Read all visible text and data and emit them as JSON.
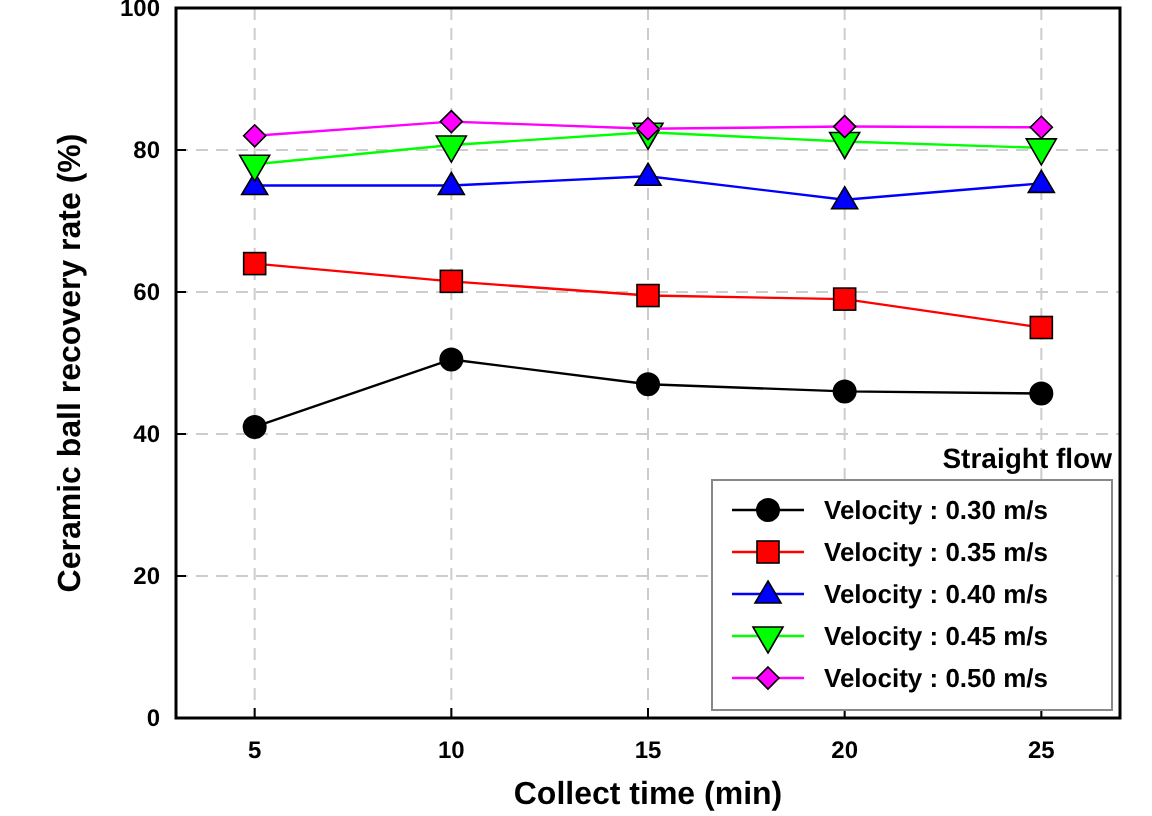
{
  "chart_data": {
    "type": "line",
    "xlabel": "Collect time (min)",
    "ylabel": "Ceramic ball recovery rate (%)",
    "legend_title": "Straight flow",
    "x": [
      5,
      10,
      15,
      20,
      25
    ],
    "xlim": [
      3,
      27
    ],
    "xticks": [
      5,
      10,
      15,
      20,
      25
    ],
    "ylim": [
      0,
      100
    ],
    "yticks": [
      0,
      20,
      40,
      60,
      80,
      100
    ],
    "grid": true,
    "legend": "bottom right",
    "series": [
      {
        "name": "Velocity : 0.30 m/s",
        "color": "#000000",
        "marker": "circle",
        "values": [
          41,
          50.5,
          47,
          46,
          45.7
        ]
      },
      {
        "name": "Velocity : 0.35 m/s",
        "color": "#ff0000",
        "marker": "square",
        "values": [
          64,
          61.5,
          59.5,
          59,
          55
        ]
      },
      {
        "name": "Velocity : 0.40 m/s",
        "color": "#0000ff",
        "marker": "triangle",
        "values": [
          75,
          75,
          76.3,
          73,
          75.3
        ]
      },
      {
        "name": "Velocity : 0.45 m/s",
        "color": "#00ff00",
        "marker": "triangle-down",
        "values": [
          78,
          80.7,
          82.5,
          81.2,
          80.3
        ]
      },
      {
        "name": "Velocity : 0.50 m/s",
        "color": "#ff00ff",
        "marker": "diamond",
        "values": [
          82,
          84,
          83,
          83.3,
          83.2
        ]
      }
    ]
  }
}
